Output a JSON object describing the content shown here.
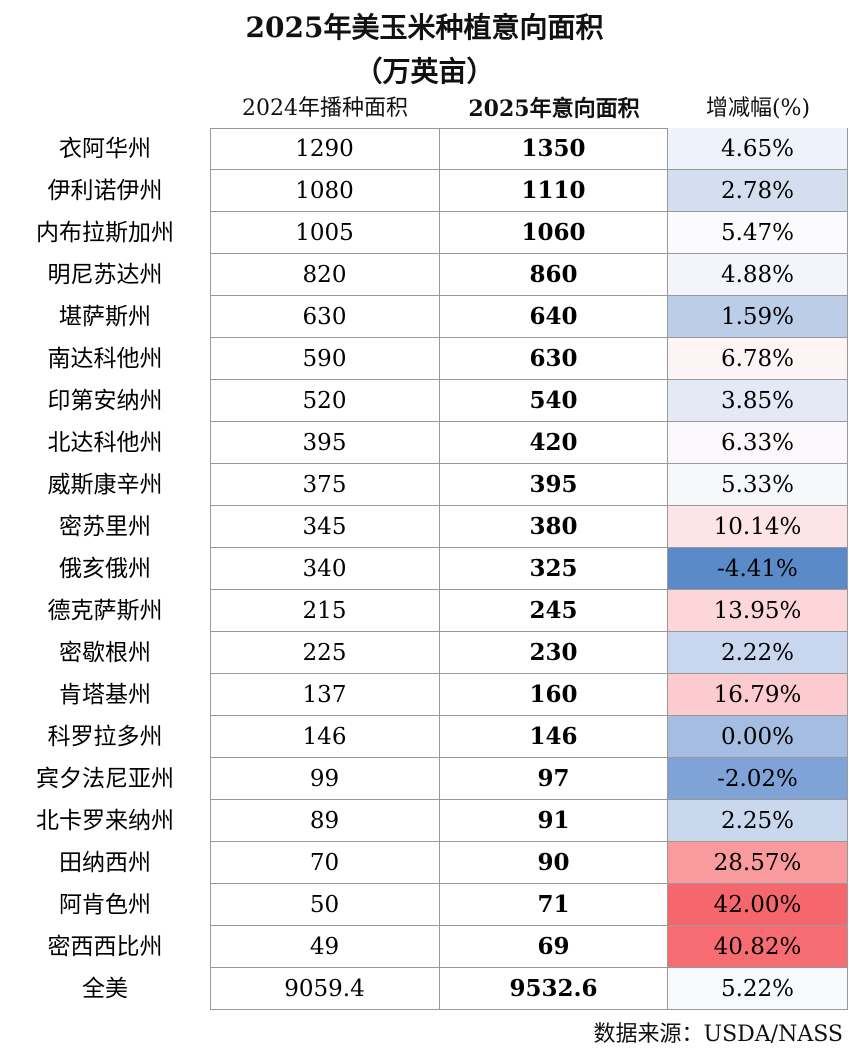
{
  "title": "2025年美玉米种植意向面积",
  "subtitle": "（万英亩）",
  "table": {
    "headers": [
      "2024年播种面积",
      "2025年意向面积",
      "增减幅(%)"
    ],
    "rows": [
      {
        "state": "衣阿华州",
        "area_2024": "1290",
        "area_2025": "1350",
        "change": "4.65%",
        "color": "#eef2fa"
      },
      {
        "state": "伊利诺伊州",
        "area_2024": "1080",
        "area_2025": "1110",
        "change": "2.78%",
        "color": "#d3dff0"
      },
      {
        "state": "内布拉斯加州",
        "area_2024": "1005",
        "area_2025": "1060",
        "change": "5.47%",
        "color": "#fbfbfd"
      },
      {
        "state": "明尼苏达州",
        "area_2024": "820",
        "area_2025": "860",
        "change": "4.88%",
        "color": "#f3f5fb"
      },
      {
        "state": "堪萨斯州",
        "area_2024": "630",
        "area_2025": "640",
        "change": "1.59%",
        "color": "#bccde8"
      },
      {
        "state": "南达科他州",
        "area_2024": "590",
        "area_2025": "630",
        "change": "6.78%",
        "color": "#fdf4f5"
      },
      {
        "state": "印第安纳州",
        "area_2024": "520",
        "area_2025": "540",
        "change": "3.85%",
        "color": "#e3eaf6"
      },
      {
        "state": "北达科他州",
        "area_2024": "395",
        "area_2025": "420",
        "change": "6.33%",
        "color": "#fbf7fa"
      },
      {
        "state": "威斯康辛州",
        "area_2024": "375",
        "area_2025": "395",
        "change": "5.33%",
        "color": "#f7f8fc"
      },
      {
        "state": "密苏里州",
        "area_2024": "345",
        "area_2025": "380",
        "change": "10.14%",
        "color": "#fde5e7"
      },
      {
        "state": "俄亥俄州",
        "area_2024": "340",
        "area_2025": "325",
        "change": "-4.41%",
        "color": "#5b8ac8"
      },
      {
        "state": "德克萨斯州",
        "area_2024": "215",
        "area_2025": "245",
        "change": "13.95%",
        "color": "#fcd6d9"
      },
      {
        "state": "密歇根州",
        "area_2024": "225",
        "area_2025": "230",
        "change": "2.22%",
        "color": "#c8d6ee"
      },
      {
        "state": "肯塔基州",
        "area_2024": "137",
        "area_2025": "160",
        "change": "16.79%",
        "color": "#fbcbcf"
      },
      {
        "state": "科罗拉多州",
        "area_2024": "146",
        "area_2025": "146",
        "change": "0.00%",
        "color": "#a4bde0"
      },
      {
        "state": "宾夕法尼亚州",
        "area_2024": "99",
        "area_2025": "97",
        "change": "-2.02%",
        "color": "#7fa3d6"
      },
      {
        "state": "北卡罗来纳州",
        "area_2024": "89",
        "area_2025": "91",
        "change": "2.25%",
        "color": "#cad8ee"
      },
      {
        "state": "田纳西州",
        "area_2024": "70",
        "area_2025": "90",
        "change": "28.57%",
        "color": "#f89a9e"
      },
      {
        "state": "阿肯色州",
        "area_2024": "50",
        "area_2025": "71",
        "change": "42.00%",
        "color": "#f5676d"
      },
      {
        "state": "密西西比州",
        "area_2024": "49",
        "area_2025": "69",
        "change": "40.82%",
        "color": "#f66c72"
      },
      {
        "state": "全美",
        "area_2024": "9059.4",
        "area_2025": "9532.6",
        "change": "5.22%",
        "color": "#f8f9fc"
      }
    ]
  },
  "source": "数据来源：USDA/NASS"
}
